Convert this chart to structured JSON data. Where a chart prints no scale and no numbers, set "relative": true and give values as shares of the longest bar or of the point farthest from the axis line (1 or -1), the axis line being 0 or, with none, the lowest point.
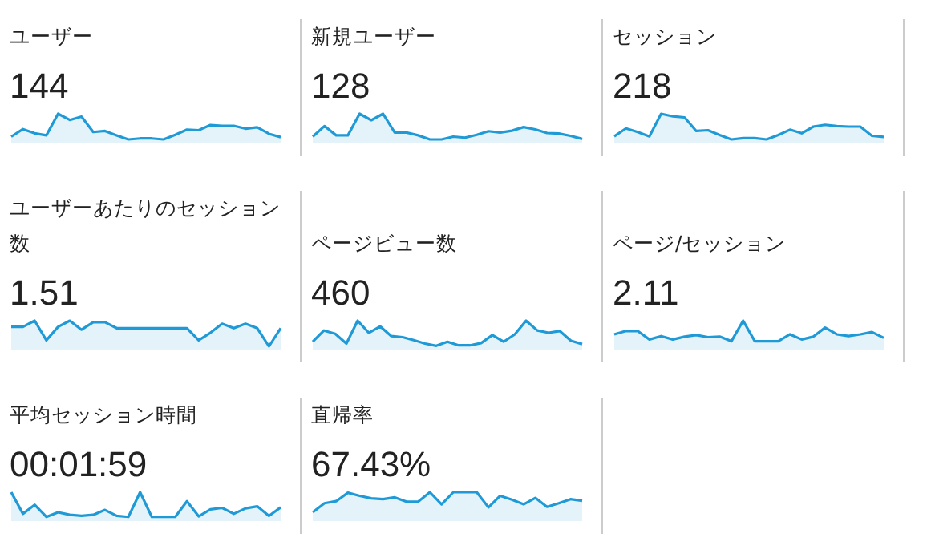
{
  "chart_data": [
    {
      "type": "area",
      "title": "ユーザー",
      "subtitle": "144",
      "relative": true,
      "categories": [
        null,
        null,
        null,
        null,
        null,
        null,
        null,
        null,
        null,
        null,
        null,
        null,
        null,
        null,
        null,
        null,
        null,
        null,
        null,
        null,
        null,
        null,
        null,
        null
      ],
      "color": "#1f9ad6",
      "values": [
        0.11,
        0.4,
        0.24,
        0.16,
        1,
        0.76,
        0.89,
        0.29,
        0.33,
        0.16,
        0,
        0.04,
        0.04,
        0,
        0.18,
        0.38,
        0.36,
        0.56,
        0.53,
        0.53,
        0.42,
        0.47,
        0.22,
        0.09
      ]
    },
    {
      "type": "area",
      "title": "新規ユーザー",
      "subtitle": "128",
      "relative": true,
      "categories": [
        null,
        null,
        null,
        null,
        null,
        null,
        null,
        null,
        null,
        null,
        null,
        null,
        null,
        null,
        null,
        null,
        null,
        null,
        null,
        null,
        null,
        null,
        null,
        null
      ],
      "color": "#1f9ad6",
      "values": [
        0.11,
        0.52,
        0.16,
        0.16,
        1,
        0.75,
        1,
        0.27,
        0.27,
        0.16,
        0,
        0,
        0.11,
        0.07,
        0.18,
        0.32,
        0.27,
        0.34,
        0.48,
        0.39,
        0.25,
        0.23,
        0.14,
        0.02
      ]
    },
    {
      "type": "area",
      "title": "セッション",
      "subtitle": "218",
      "relative": true,
      "categories": [
        null,
        null,
        null,
        null,
        null,
        null,
        null,
        null,
        null,
        null,
        null,
        null,
        null,
        null,
        null,
        null,
        null,
        null,
        null,
        null,
        null,
        null,
        null,
        null
      ],
      "color": "#1f9ad6",
      "values": [
        0.12,
        0.43,
        0.29,
        0.12,
        1,
        0.9,
        0.86,
        0.33,
        0.36,
        0.17,
        0,
        0.05,
        0.05,
        0,
        0.17,
        0.38,
        0.24,
        0.5,
        0.57,
        0.52,
        0.5,
        0.5,
        0.14,
        0.1
      ]
    },
    {
      "type": "area",
      "title": "ユーザーあたりのセッション数",
      "subtitle": "1.51",
      "relative": true,
      "categories": [
        null,
        null,
        null,
        null,
        null,
        null,
        null,
        null,
        null,
        null,
        null,
        null,
        null,
        null,
        null,
        null,
        null,
        null,
        null,
        null,
        null,
        null,
        null,
        null
      ],
      "color": "#1f9ad6",
      "values": [
        0.76,
        0.76,
        1,
        0.24,
        0.76,
        1,
        0.65,
        0.94,
        0.94,
        0.71,
        0.71,
        0.71,
        0.71,
        0.71,
        0.71,
        0.71,
        0.24,
        0.53,
        0.88,
        0.71,
        0.88,
        0.71,
        0,
        0.71
      ]
    },
    {
      "type": "area",
      "title": "ページビュー数",
      "subtitle": "460",
      "relative": true,
      "categories": [
        null,
        null,
        null,
        null,
        null,
        null,
        null,
        null,
        null,
        null,
        null,
        null,
        null,
        null,
        null,
        null,
        null,
        null,
        null,
        null,
        null,
        null,
        null,
        null,
        null
      ],
      "color": "#1f9ad6",
      "values": [
        0.18,
        0.62,
        0.49,
        0.11,
        1,
        0.53,
        0.78,
        0.4,
        0.36,
        0.24,
        0.11,
        0.02,
        0.18,
        0.04,
        0.04,
        0.13,
        0.44,
        0.18,
        0.47,
        1,
        0.62,
        0.53,
        0.6,
        0.22,
        0.09
      ]
    },
    {
      "type": "area",
      "title": "ページ/セッション",
      "subtitle": "2.11",
      "relative": true,
      "categories": [
        null,
        null,
        null,
        null,
        null,
        null,
        null,
        null,
        null,
        null,
        null,
        null,
        null,
        null,
        null,
        null,
        null,
        null,
        null,
        null,
        null,
        null,
        null,
        null
      ],
      "color": "#1f9ad6",
      "values": [
        0.47,
        0.6,
        0.6,
        0.27,
        0.4,
        0.27,
        0.38,
        0.44,
        0.36,
        0.38,
        0.2,
        1,
        0.2,
        0.2,
        0.2,
        0.47,
        0.27,
        0.38,
        0.73,
        0.47,
        0.4,
        0.47,
        0.56,
        0.33
      ]
    },
    {
      "type": "area",
      "title": "平均セッション時間",
      "subtitle": "00:01:59",
      "relative": true,
      "categories": [
        null,
        null,
        null,
        null,
        null,
        null,
        null,
        null,
        null,
        null,
        null,
        null,
        null,
        null,
        null,
        null,
        null,
        null,
        null,
        null,
        null,
        null,
        null,
        null
      ],
      "color": "#1f9ad6",
      "values": [
        1,
        0.16,
        0.51,
        0.04,
        0.22,
        0.12,
        0.08,
        0.12,
        0.31,
        0.08,
        0.04,
        1,
        0.04,
        0.04,
        0.04,
        0.65,
        0.06,
        0.33,
        0.39,
        0.16,
        0.37,
        0.45,
        0.08,
        0.41
      ]
    },
    {
      "type": "area",
      "title": "直帰率",
      "subtitle": "67.43%",
      "relative": true,
      "categories": [
        null,
        null,
        null,
        null,
        null,
        null,
        null,
        null,
        null,
        null,
        null,
        null,
        null,
        null,
        null,
        null,
        null,
        null,
        null,
        null,
        null,
        null,
        null,
        null
      ],
      "color": "#1f9ad6",
      "values": [
        0.22,
        0.57,
        0.65,
        0.98,
        0.86,
        0.76,
        0.73,
        0.8,
        0.63,
        0.63,
        1,
        0.53,
        1,
        1,
        1,
        0.41,
        0.86,
        0.71,
        0.53,
        0.78,
        0.43,
        0.57,
        0.73,
        0.67
      ]
    }
  ]
}
